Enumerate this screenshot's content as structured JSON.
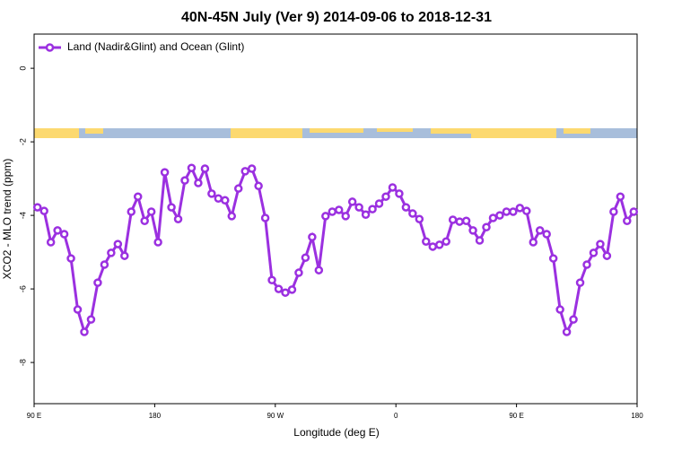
{
  "chart_data": {
    "type": "line",
    "title": "40N-45N July (Ver 9)   2014-09-06 to 2018-12-31",
    "x_label": "Longitude (deg E)",
    "y_label": "XCO2 - MLO trend (ppm)",
    "xlim": [
      90,
      540
    ],
    "xticks": [
      {
        "value": 90,
        "label": "90 E"
      },
      {
        "value": 180,
        "label": "180"
      },
      {
        "value": 270,
        "label": "90 W"
      },
      {
        "value": 360,
        "label": "0"
      },
      {
        "value": 450,
        "label": "90 E"
      },
      {
        "value": 540,
        "label": "180"
      }
    ],
    "ylim": [
      -9.12,
      0.93
    ],
    "yticks": [
      -8,
      -6,
      -4,
      -2,
      0
    ],
    "legend": "top-left",
    "x": [
      92.5,
      97.5,
      102.5,
      107.5,
      112.5,
      117.5,
      122.5,
      127.5,
      132.5,
      137.5,
      142.5,
      147.5,
      152.5,
      157.5,
      162.5,
      167.5,
      172.5,
      177.5,
      182.5,
      187.5,
      192.5,
      197.5,
      202.5,
      207.5,
      212.5,
      217.5,
      222.5,
      227.5,
      232.5,
      237.5,
      242.5,
      247.5,
      252.5,
      257.5,
      262.5,
      267.5,
      272.5,
      277.5,
      282.5,
      287.5,
      292.5,
      297.5,
      302.5,
      307.5,
      312.5,
      317.5,
      322.5,
      327.5,
      332.5,
      337.5,
      342.5,
      347.5,
      352.5,
      357.5,
      362.5,
      367.5,
      372.5,
      377.5,
      382.5,
      387.5,
      392.5,
      397.5,
      402.5,
      407.5,
      412.5,
      417.5,
      422.5,
      427.5,
      432.5,
      437.5,
      442.5,
      447.5,
      452.5,
      457.5,
      462.5,
      467.5,
      472.5,
      477.5,
      482.5,
      487.5,
      492.5,
      497.5,
      502.5,
      507.5,
      512.5,
      517.5,
      522.5,
      527.5,
      532.5,
      537.5
    ],
    "series": [
      {
        "name": "Land (Nadir&Glint) and Ocean (Glint)",
        "color": "#9b30e0",
        "values": [
          -3.78,
          -3.88,
          -4.73,
          -4.41,
          -4.51,
          -5.17,
          -6.56,
          -7.17,
          -6.83,
          -5.83,
          -5.34,
          -5.02,
          -4.78,
          -5.1,
          -3.9,
          -3.49,
          -4.15,
          -3.9,
          -4.73,
          -2.83,
          -3.78,
          -4.1,
          -3.05,
          -2.71,
          -3.12,
          -2.73,
          -3.41,
          -3.54,
          -3.59,
          -4.02,
          -3.27,
          -2.8,
          -2.73,
          -3.2,
          -4.07,
          -5.76,
          -6.0,
          -6.1,
          -6.02,
          -5.56,
          -5.15,
          -4.59,
          -5.49,
          -4.02,
          -3.9,
          -3.85,
          -4.02,
          -3.63,
          -3.78,
          -3.98,
          -3.83,
          -3.68,
          -3.49,
          -3.24,
          -3.41,
          -3.78,
          -3.95,
          -4.1,
          -4.71,
          -4.85,
          -4.8,
          -4.71,
          -4.12,
          -4.17,
          -4.15,
          -4.41,
          -4.68,
          -4.32,
          -4.07,
          -4.0,
          -3.9,
          -3.9,
          -3.8,
          -3.88,
          -4.73,
          -4.41,
          -4.51,
          -5.17,
          -6.56,
          -7.17,
          -6.83,
          -5.83,
          -5.34,
          -5.02,
          -4.78,
          -5.1,
          -3.9,
          -3.49,
          -4.15,
          -3.9
        ]
      }
    ]
  }
}
